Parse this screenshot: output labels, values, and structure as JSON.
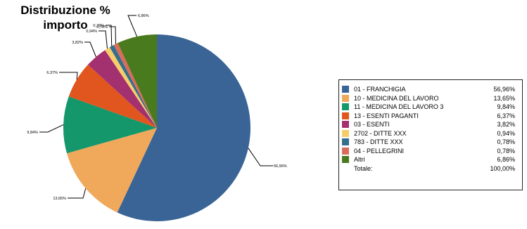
{
  "chart_data": {
    "type": "pie",
    "title_line1": "Distribuzione %",
    "title_line2": "importo",
    "slices": [
      {
        "label": "01 - FRANCHIGIA",
        "value": 56.96,
        "value_text": "56,96%",
        "color": "#3a6496"
      },
      {
        "label": "10 - MEDICINA DEL LAVORO",
        "value": 13.65,
        "value_text": "13,65%",
        "color": "#f0a85a"
      },
      {
        "label": "11 - MEDICINA DEL LAVORO 3",
        "value": 9.84,
        "value_text": "9,84%",
        "color": "#13976b"
      },
      {
        "label": "13 - ESENTI PAGANTI",
        "value": 6.37,
        "value_text": "6,37%",
        "color": "#e0561e"
      },
      {
        "label": "03 - ESENTI",
        "value": 3.82,
        "value_text": "3,82%",
        "color": "#a3306f"
      },
      {
        "label": "2702 - DITTE XXX",
        "value": 0.94,
        "value_text": "0,94%",
        "color": "#f7cc6a"
      },
      {
        "label": "783 - DITTE XXX",
        "value": 0.78,
        "value_text": "0,78%",
        "color": "#346f8d"
      },
      {
        "label": "04 - PELLEGRINI",
        "value": 0.78,
        "value_text": "0,78%",
        "color": "#d96c5a"
      },
      {
        "label": "Altri",
        "value": 6.86,
        "value_text": "6,86%",
        "color": "#4a7a1e"
      }
    ],
    "legend": {
      "total_label": "Totale:",
      "total_value": "100,00%"
    }
  }
}
